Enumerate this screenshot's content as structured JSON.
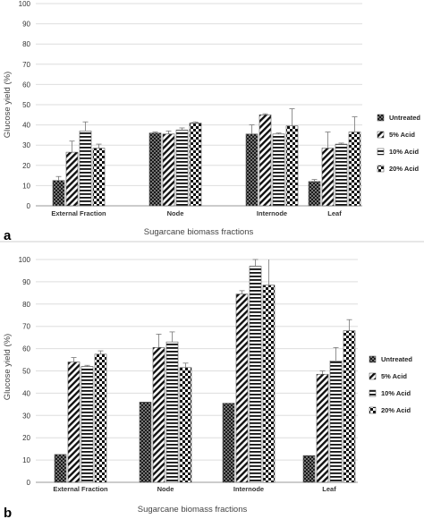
{
  "patterns": {
    "Untreated": "dots",
    "5% Acid": "diagonal",
    "10% Acid": "horizontal",
    "20% Acid": "checker"
  },
  "chart_data": [
    {
      "panel_label": "a",
      "type": "bar",
      "categories": [
        "External Fraction",
        "Node",
        "Internode",
        "Leaf"
      ],
      "series": [
        {
          "name": "Untreated",
          "values": [
            12.5,
            36,
            35.5,
            12
          ],
          "errors": [
            2,
            0.5,
            4.5,
            1
          ]
        },
        {
          "name": "5% Acid",
          "values": [
            26.5,
            35.5,
            45,
            28.5
          ],
          "errors": [
            5.5,
            1.5,
            0.5,
            8
          ]
        },
        {
          "name": "10% Acid",
          "values": [
            37,
            37.5,
            35.5,
            30.5
          ],
          "errors": [
            4.5,
            1,
            0.5,
            0.5
          ]
        },
        {
          "name": "20% Acid",
          "values": [
            28.5,
            41,
            39.5,
            36.5
          ],
          "errors": [
            2,
            0.5,
            8.5,
            7.5
          ]
        }
      ],
      "xlabel": "Sugarcane biomass fractions",
      "ylabel": "Glucose yield (%)",
      "ylim": [
        0,
        100
      ],
      "yticks": [
        0,
        10,
        20,
        30,
        40,
        50,
        60,
        70,
        80,
        90,
        100
      ],
      "grid": true,
      "legend_position": "right"
    },
    {
      "panel_label": "b",
      "type": "bar",
      "categories": [
        "External Fraction",
        "Node",
        "Internode",
        "Leaf"
      ],
      "series": [
        {
          "name": "Untreated",
          "values": [
            12.5,
            36,
            35.5,
            12
          ],
          "errors": [
            0,
            0,
            0,
            0
          ]
        },
        {
          "name": "5% Acid",
          "values": [
            54,
            60.5,
            84.5,
            48.5
          ],
          "errors": [
            2,
            6,
            1.5,
            1.5
          ]
        },
        {
          "name": "10% Acid",
          "values": [
            52,
            63,
            97,
            54.5
          ],
          "errors": [
            0.5,
            4.5,
            3,
            6
          ]
        },
        {
          "name": "20% Acid",
          "values": [
            57.5,
            51.5,
            88.5,
            68
          ],
          "errors": [
            1.5,
            2,
            12,
            5
          ]
        }
      ],
      "xlabel": "Sugarcane biomass fractions",
      "ylabel": "Glucose yield (%)",
      "ylim": [
        0,
        100
      ],
      "yticks": [
        0,
        10,
        20,
        30,
        40,
        50,
        60,
        70,
        80,
        90,
        100
      ],
      "grid": true,
      "legend_position": "right"
    }
  ]
}
